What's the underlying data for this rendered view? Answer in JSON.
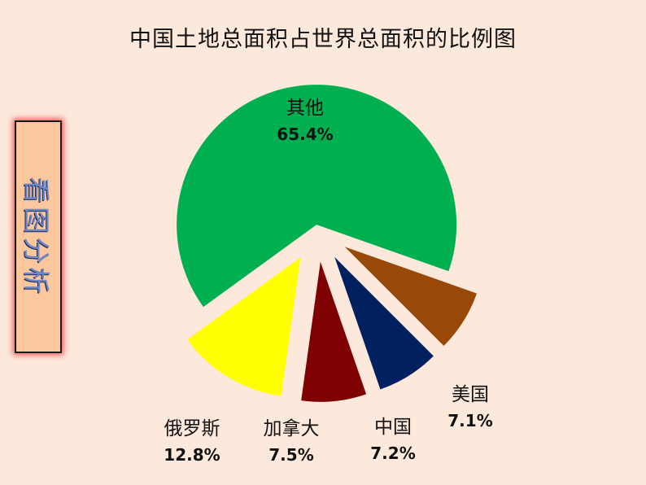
{
  "title": "中国土地总面积占世界总面积的比例图",
  "side_label": "看图分析",
  "chart_data": {
    "type": "pie",
    "title": "中国土地总面积占世界总面积的比例图",
    "exploded": true,
    "slices": [
      {
        "label": "其他",
        "value": 65.4,
        "display": "65.4%",
        "color": "#00b050"
      },
      {
        "label": "美国",
        "value": 7.1,
        "display": "7.1%",
        "color": "#984807"
      },
      {
        "label": "中国",
        "value": 7.2,
        "display": "7.2%",
        "color": "#002060"
      },
      {
        "label": "加拿大",
        "value": 7.5,
        "display": "7.5%",
        "color": "#7f0000"
      },
      {
        "label": "俄罗斯",
        "value": 12.8,
        "display": "12.8%",
        "color": "#ffff00"
      }
    ]
  }
}
